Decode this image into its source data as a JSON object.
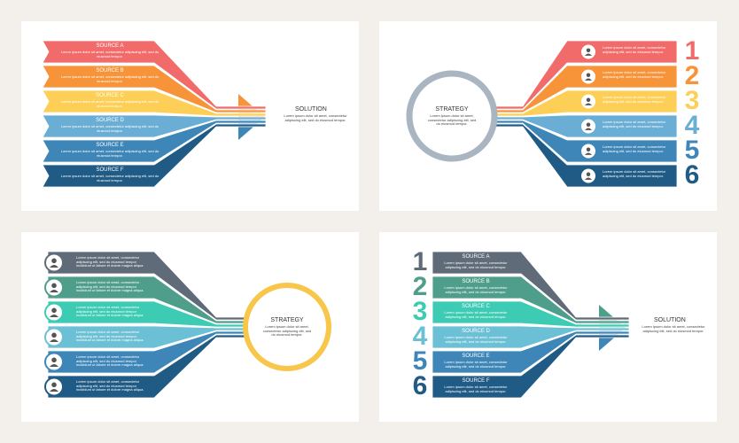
{
  "panels": [
    {
      "items": [
        {
          "label": "SOURCE A",
          "text": "Lorem ipsum dolor sit amet, consectetur adipiscing elit, sed do eiusmod tempor."
        },
        {
          "label": "SOURCE B",
          "text": "Lorem ipsum dolor sit amet, consectetur adipiscing elit, sed do eiusmod tempor."
        },
        {
          "label": "SOURCE C",
          "text": "Lorem ipsum dolor sit amet, consectetur adipiscing elit, sed do eiusmod tempor."
        },
        {
          "label": "SOURCE D",
          "text": "Lorem ipsum dolor sit amet, consectetur adipiscing elit, sed do eiusmod tempor."
        },
        {
          "label": "SOURCE E",
          "text": "Lorem ipsum dolor sit amet, consectetur adipiscing elit, sed do eiusmod tempor."
        },
        {
          "label": "SOURCE F",
          "text": "Lorem ipsum dolor sit amet, consectetur adipiscing elit, sed do eiusmod tempor."
        }
      ],
      "center": {
        "label": "SOLUTION",
        "text": "Lorem ipsum dolor sit amet, consectetur adipiscing elit, sed do eiusmod tempor."
      }
    },
    {
      "items": [
        {
          "num": "1",
          "text": "Lorem ipsum dolor sit amet, consectetur adipiscing elit, sed do eiusmod tempor."
        },
        {
          "num": "2",
          "text": "Lorem ipsum dolor sit amet, consectetur adipiscing elit, sed do eiusmod tempor."
        },
        {
          "num": "3",
          "text": "Lorem ipsum dolor sit amet, consectetur adipiscing elit, sed do eiusmod tempor."
        },
        {
          "num": "4",
          "text": "Lorem ipsum dolor sit amet, consectetur adipiscing elit, sed do eiusmod tempor."
        },
        {
          "num": "5",
          "text": "Lorem ipsum dolor sit amet, consectetur adipiscing elit, sed do eiusmod tempor."
        },
        {
          "num": "6",
          "text": "Lorem ipsum dolor sit amet, consectetur adipiscing elit, sed do eiusmod tempor."
        }
      ],
      "center": {
        "label": "STRATEGY",
        "text": "Lorem ipsum dolor sit amet, consectetur adipiscing elit, sed do eiusmod tempor."
      }
    },
    {
      "items": [
        {
          "text": "Lorem ipsum dolor sit amet, consectetur adipiscing elit, sed do eiusmod tempor incididunt ut labore et dolore magna aliqua."
        },
        {
          "text": "Lorem ipsum dolor sit amet, consectetur adipiscing elit, sed do eiusmod tempor incididunt ut labore et dolore magna aliqua."
        },
        {
          "text": "Lorem ipsum dolor sit amet, consectetur adipiscing elit, sed do eiusmod tempor incididunt ut labore et dolore magna aliqua."
        },
        {
          "text": "Lorem ipsum dolor sit amet, consectetur adipiscing elit, sed do eiusmod tempor incididunt ut labore et dolore magna aliqua."
        },
        {
          "text": "Lorem ipsum dolor sit amet, consectetur adipiscing elit, sed do eiusmod tempor incididunt ut labore et dolore magna aliqua."
        },
        {
          "text": "Lorem ipsum dolor sit amet, consectetur adipiscing elit, sed do eiusmod tempor incididunt ut labore et dolore magna aliqua."
        }
      ],
      "center": {
        "label": "STRATEGY",
        "text": "Lorem ipsum dolor sit amet, consectetur adipiscing elit, sed do eiusmod tempor."
      }
    },
    {
      "items": [
        {
          "num": "1",
          "label": "SOURCE A",
          "text": "Lorem ipsum dolor sit amet, consectetur adipiscing elit, sed do eiusmod tempor."
        },
        {
          "num": "2",
          "label": "SOURCE B",
          "text": "Lorem ipsum dolor sit amet, consectetur adipiscing elit, sed do eiusmod tempor."
        },
        {
          "num": "3",
          "label": "SOURCE C",
          "text": "Lorem ipsum dolor sit amet, consectetur adipiscing elit, sed do eiusmod tempor."
        },
        {
          "num": "4",
          "label": "SOURCE D",
          "text": "Lorem ipsum dolor sit amet, consectetur adipiscing elit, sed do eiusmod tempor."
        },
        {
          "num": "5",
          "label": "SOURCE E",
          "text": "Lorem ipsum dolor sit amet, consectetur adipiscing elit, sed do eiusmod tempor."
        },
        {
          "num": "6",
          "label": "SOURCE F",
          "text": "Lorem ipsum dolor sit amet, consectetur adipiscing elit, sed do eiusmod tempor."
        }
      ],
      "center": {
        "label": "SOLUTION",
        "text": "Lorem ipsum dolor sit amet, consectetur adipiscing elit, sed do eiusmod tempor."
      }
    }
  ]
}
